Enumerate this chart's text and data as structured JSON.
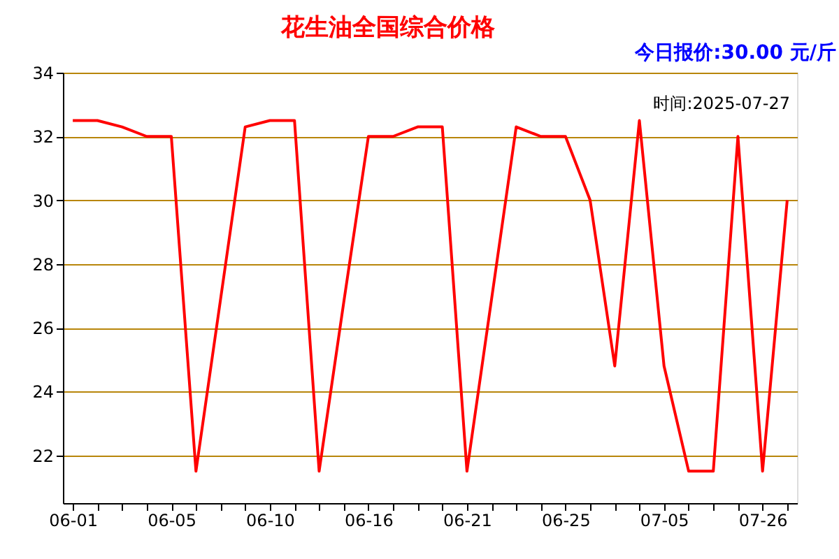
{
  "chart_data": {
    "type": "line",
    "title": "花生油全国综合价格",
    "subtitle": "今日报价:30.00 元/斤",
    "annotations": [
      "时间:2025-07-27"
    ],
    "categories": [
      "06-01",
      null,
      null,
      null,
      "06-05",
      null,
      null,
      null,
      "06-10",
      null,
      null,
      null,
      "06-16",
      null,
      null,
      null,
      "06-21",
      null,
      null,
      null,
      "06-25",
      null,
      null,
      null,
      "07-05",
      null,
      null,
      null,
      "07-26",
      null
    ],
    "series": [
      {
        "color": "#ff0000",
        "values": [
          32.5,
          32.5,
          32.3,
          32,
          32,
          21.5,
          26.9,
          32.3,
          32.5,
          32.5,
          21.5,
          26.8,
          32,
          32,
          32.3,
          32.3,
          21.5,
          26.9,
          32.3,
          32,
          32,
          30,
          24.8,
          32.5,
          24.8,
          21.5,
          21.5,
          32,
          21.5,
          30
        ]
      }
    ],
    "ylim": [
      20.5,
      34
    ],
    "yticks": [
      22,
      24,
      26,
      28,
      30,
      32,
      34
    ],
    "grid": "y",
    "marker": "none",
    "line_style": "solid"
  }
}
